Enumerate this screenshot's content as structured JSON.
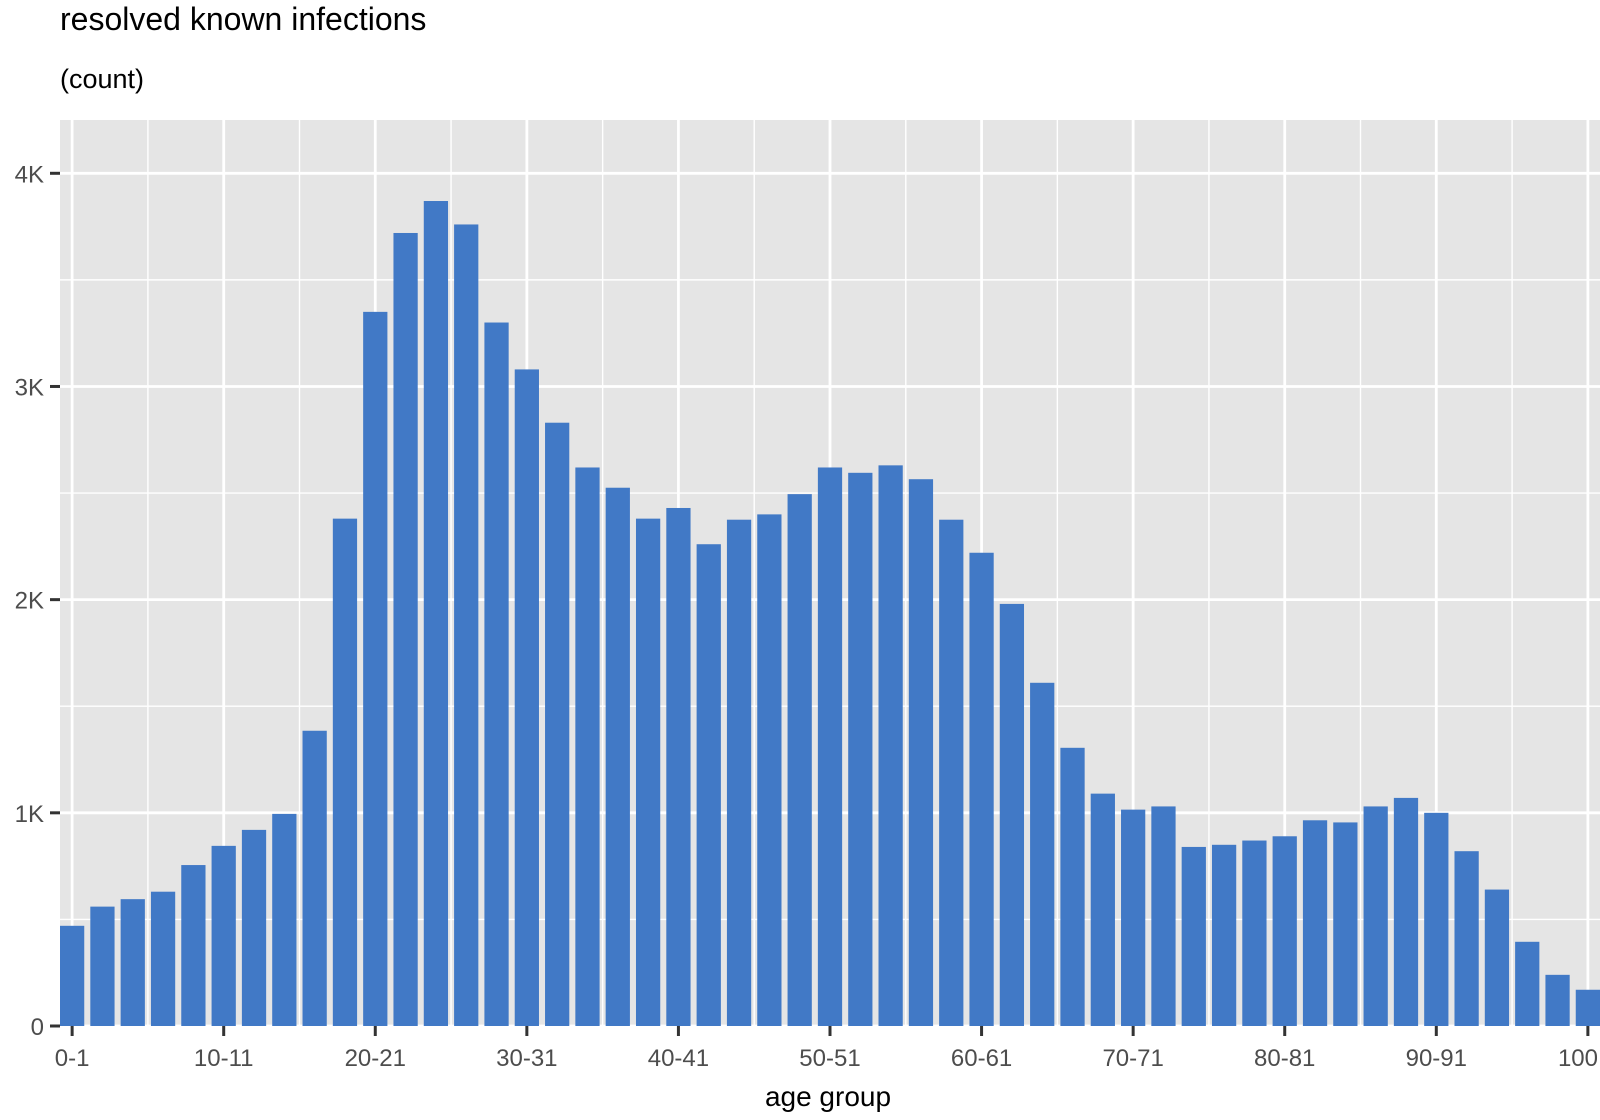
{
  "chart_data": {
    "type": "bar",
    "title": "resolved known infections",
    "subtitle": "(count)",
    "xlabel": "age group",
    "ylabel": "",
    "ylim": [
      0,
      4250
    ],
    "y_ticks": [
      {
        "value": 0,
        "label": "0"
      },
      {
        "value": 1000,
        "label": "1K"
      },
      {
        "value": 2000,
        "label": "2K"
      },
      {
        "value": 3000,
        "label": "3K"
      },
      {
        "value": 4000,
        "label": "4K"
      }
    ],
    "x_tick_labels": [
      {
        "index": 0,
        "label": "0-1"
      },
      {
        "index": 5,
        "label": "10-11"
      },
      {
        "index": 10,
        "label": "20-21"
      },
      {
        "index": 15,
        "label": "30-31"
      },
      {
        "index": 20,
        "label": "40-41"
      },
      {
        "index": 25,
        "label": "50-51"
      },
      {
        "index": 30,
        "label": "60-61"
      },
      {
        "index": 35,
        "label": "70-71"
      },
      {
        "index": 40,
        "label": "80-81"
      },
      {
        "index": 45,
        "label": "90-91"
      },
      {
        "index": 50,
        "label": "100"
      }
    ],
    "bar_color": "#4179c6",
    "panel_color": "#e5e5e5",
    "grid": true,
    "values": [
      470,
      560,
      595,
      630,
      755,
      845,
      920,
      995,
      1385,
      2380,
      3350,
      3720,
      3870,
      3760,
      3300,
      3080,
      2830,
      2620,
      2525,
      2380,
      2430,
      2260,
      2375,
      2400,
      2495,
      2620,
      2595,
      2630,
      2565,
      2375,
      2220,
      1980,
      1610,
      1305,
      1090,
      1015,
      1030,
      840,
      850,
      870,
      890,
      965,
      955,
      1030,
      1070,
      1000,
      820,
      640,
      395,
      240,
      170
    ]
  }
}
